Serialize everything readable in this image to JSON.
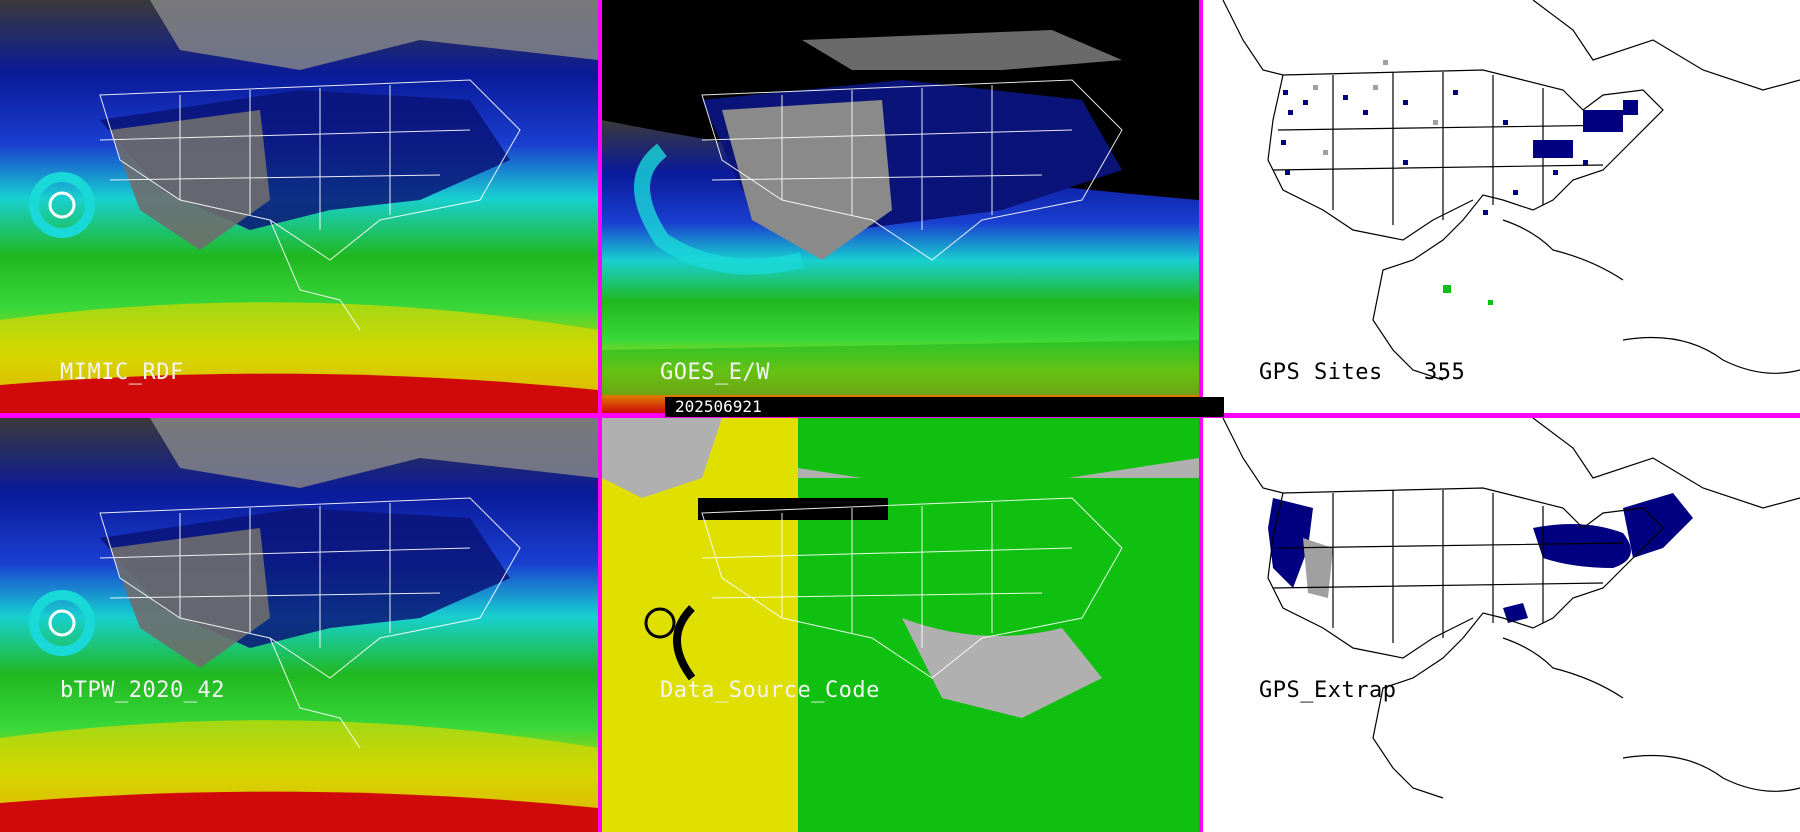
{
  "panels": {
    "mimic_rdf": {
      "label": "MIMIC_RDF"
    },
    "goes_ew": {
      "label": "GOES_E/W"
    },
    "gps_sites": {
      "label": "GPS Sites",
      "count": "355"
    },
    "btpw": {
      "label": "bTPW_2020_42"
    },
    "data_source_code": {
      "label": "Data_Source_Code"
    },
    "gps_extrap": {
      "label": "GPS_Extrap"
    }
  },
  "timestamp": "202506921",
  "colors": {
    "divider": "#ff00ff",
    "tpw_scale": [
      "#000033",
      "#0a1aa8",
      "#1a4fd8",
      "#19d8d8",
      "#20c020",
      "#40e040",
      "#d8d800",
      "#f0a000",
      "#e01010"
    ],
    "source_yellow": "#e0e000",
    "source_green": "#10c010",
    "source_gray": "#b0b0b0",
    "site_navy": "#000080",
    "site_gray": "#a0a0a0"
  }
}
